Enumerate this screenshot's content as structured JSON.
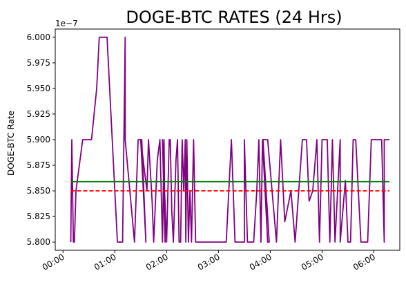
{
  "chart_data": {
    "type": "line",
    "title": "DOGE-BTC RATES (24 Hrs)",
    "xlabel": "",
    "ylabel": "DOGE-BTC Rate",
    "y_offset_label": "1e−7",
    "y_scale": 1e-07,
    "xlim": [
      -0.15,
      6.5
    ],
    "ylim": [
      5.792,
      6.008
    ],
    "x_ticks": [
      0,
      1,
      2,
      3,
      4,
      5,
      6
    ],
    "x_tick_labels": [
      "00:00",
      "01:00",
      "02:00",
      "03:00",
      "04:00",
      "05:00",
      "06:00"
    ],
    "y_ticks": [
      5.8,
      5.825,
      5.85,
      5.875,
      5.9,
      5.925,
      5.95,
      5.975,
      6.0
    ],
    "y_tick_labels": [
      "5.800",
      "5.825",
      "5.850",
      "5.875",
      "5.900",
      "5.925",
      "5.950",
      "5.975",
      "6.000"
    ],
    "grid": false,
    "legend": "none",
    "series": [
      {
        "style": "solid",
        "color": "#800080",
        "x": [
          0.15,
          0.17,
          0.2,
          0.22,
          0.25,
          0.38,
          0.45,
          0.55,
          0.65,
          0.7,
          0.72,
          0.85,
          0.75,
          0.85,
          1.05,
          1.15,
          1.2,
          1.2,
          1.38,
          1.45,
          1.52,
          1.6,
          1.5,
          1.62,
          1.65,
          1.72,
          1.75,
          1.82,
          1.87,
          1.92,
          1.95,
          1.97,
          1.92,
          2.0,
          2.05,
          2.07,
          2.1,
          2.13,
          2.18,
          2.21,
          2.24,
          2.27,
          2.3,
          2.33,
          2.36,
          2.37,
          2.39,
          2.42,
          2.45,
          2.48,
          2.52,
          2.56,
          2.58,
          2.6,
          2.62,
          2.65,
          2.7,
          2.74,
          2.9,
          3.15,
          3.25,
          3.32,
          3.5,
          3.5,
          3.56,
          3.68,
          3.74,
          3.78,
          3.82,
          3.85,
          3.95,
          3.98,
          3.86,
          3.95,
          4.12,
          4.2,
          4.28,
          4.4,
          4.48,
          4.55,
          4.62,
          4.7,
          4.75,
          4.82,
          4.9,
          4.95,
          5.0,
          5.05,
          5.1,
          5.15,
          5.2,
          5.25,
          5.35,
          5.35,
          5.45,
          5.5,
          5.55,
          5.6,
          5.65,
          5.75,
          5.82,
          5.88,
          5.95,
          6.05,
          6.1,
          6.15,
          6.2,
          6.2,
          6.3
        ],
        "y": [
          5.8,
          5.9,
          5.8,
          5.8,
          5.85,
          5.9,
          5.9,
          5.9,
          5.95,
          6.0,
          6.0,
          6.0,
          6.0,
          6.0,
          5.8,
          5.8,
          6.0,
          5.9,
          5.8,
          5.9,
          5.9,
          5.8,
          5.9,
          5.85,
          5.9,
          5.84,
          5.8,
          5.88,
          5.9,
          5.8,
          5.9,
          5.8,
          5.9,
          5.8,
          5.9,
          5.9,
          5.83,
          5.8,
          5.88,
          5.9,
          5.8,
          5.8,
          5.9,
          5.85,
          5.9,
          5.8,
          5.9,
          5.8,
          5.85,
          5.8,
          5.9,
          5.8,
          5.8,
          5.8,
          5.8,
          5.8,
          5.8,
          5.8,
          5.8,
          5.8,
          5.9,
          5.8,
          5.8,
          5.9,
          5.8,
          5.8,
          5.85,
          5.9,
          5.8,
          5.9,
          5.8,
          5.8,
          5.9,
          5.9,
          5.8,
          5.9,
          5.82,
          5.85,
          5.8,
          5.85,
          5.9,
          5.9,
          5.84,
          5.85,
          5.9,
          5.8,
          5.9,
          5.9,
          5.9,
          5.8,
          5.9,
          5.8,
          5.9,
          5.8,
          5.86,
          5.8,
          5.8,
          5.9,
          5.9,
          5.8,
          5.8,
          5.8,
          5.9,
          5.9,
          5.9,
          5.9,
          5.8,
          5.9,
          5.9
        ]
      },
      {
        "style": "solid",
        "color": "#008000",
        "x": [
          0.15,
          6.3
        ],
        "y": [
          5.859,
          5.859
        ]
      },
      {
        "style": "dashed",
        "color": "#ff0000",
        "x": [
          0.15,
          6.3
        ],
        "y": [
          5.85,
          5.85
        ]
      }
    ]
  }
}
